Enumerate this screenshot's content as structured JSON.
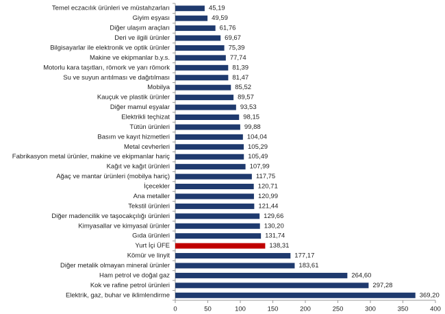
{
  "chart_data": {
    "type": "hbar",
    "categories": [
      "Temel eczacılık ürünleri ve müstahzarları",
      "Giyim eşyası",
      "Diğer ulaşım araçları",
      "Deri ve ilgili ürünler",
      "Bilgisayarlar ile elektronik ve optik ürünler",
      "Makine ve ekipmanlar b.y.s.",
      "Motorlu kara taşıtları, römork ve yarı römork",
      "Su ve suyun arıtılması ve dağıtılması",
      "Mobilya",
      "Kauçuk ve plastik ürünler",
      "Diğer mamul eşyalar",
      "Elektrikli teçhizat",
      "Tütün ürünleri",
      "Basım ve kayıt hizmetleri",
      "Metal cevherleri",
      "Fabrikasyon metal ürünler, makine ve ekipmanlar hariç",
      "Kağıt ve kağıt ürünleri",
      "Ağaç ve mantar ürünleri (mobilya hariç)",
      "İçecekler",
      "Ana metaller",
      "Tekstil ürünleri",
      "Diğer madencilik ve taşocakçılığı ürünleri",
      "Kimyasallar ve kimyasal ürünler",
      "Gıda ürünleri",
      "Yurt İçi ÜFE",
      "Kömür ve linyit",
      "Diğer metalik olmayan mineral ürünler",
      "Ham petrol ve doğal gaz",
      "Kok ve rafine petrol ürünleri",
      "Elektrik, gaz, buhar ve iklimlendirme"
    ],
    "values": [
      45.19,
      49.59,
      61.76,
      69.67,
      75.39,
      77.74,
      81.39,
      81.47,
      85.52,
      89.57,
      93.53,
      98.15,
      99.88,
      104.04,
      105.29,
      105.49,
      107.99,
      117.75,
      120.71,
      120.99,
      121.44,
      129.66,
      130.2,
      131.74,
      138.31,
      177.17,
      183.61,
      264.6,
      297.28,
      369.2
    ],
    "value_labels": [
      "45,19",
      "49,59",
      "61,76",
      "69,67",
      "75,39",
      "77,74",
      "81,39",
      "81,47",
      "85,52",
      "89,57",
      "93,53",
      "98,15",
      "99,88",
      "104,04",
      "105,29",
      "105,49",
      "107,99",
      "117,75",
      "120,71",
      "120,99",
      "121,44",
      "129,66",
      "130,20",
      "131,74",
      "138,31",
      "177,17",
      "183,61",
      "264,60",
      "297,28",
      "369,20"
    ],
    "color": "#1f3a6e",
    "highlight": {
      "index": 24,
      "color": "#c00000"
    },
    "xlim": [
      0,
      400
    ],
    "xticks": [
      0,
      50,
      100,
      150,
      200,
      250,
      300,
      350,
      400
    ]
  }
}
